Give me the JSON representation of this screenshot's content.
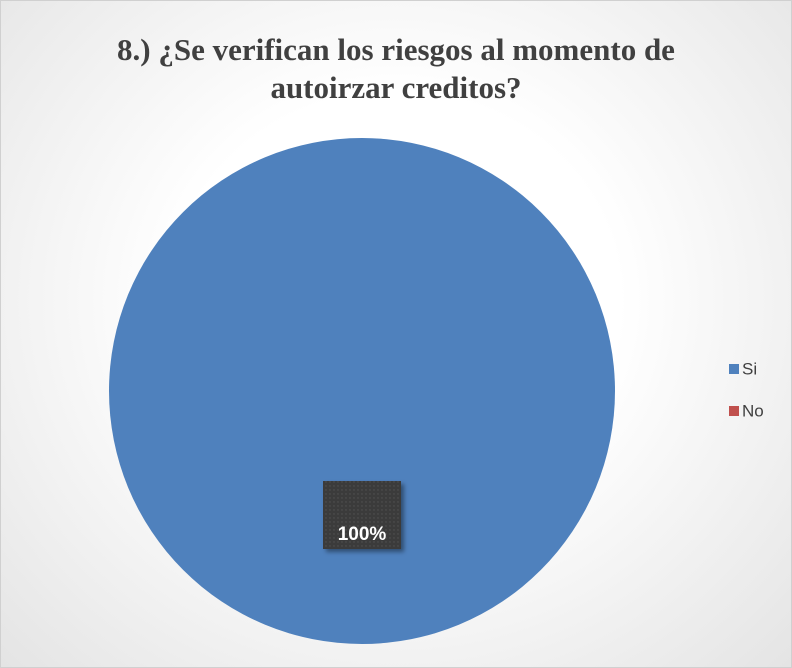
{
  "chart_data": {
    "type": "pie",
    "title": "8.) ¿Se verifican los riesgos al momento de autoirzar creditos?",
    "categories": [
      "Si",
      "No"
    ],
    "values": [
      100,
      0
    ],
    "value_labels": [
      "100%",
      null
    ],
    "colors": [
      "#4f81bd",
      "#c0504d"
    ],
    "legend": "right"
  }
}
